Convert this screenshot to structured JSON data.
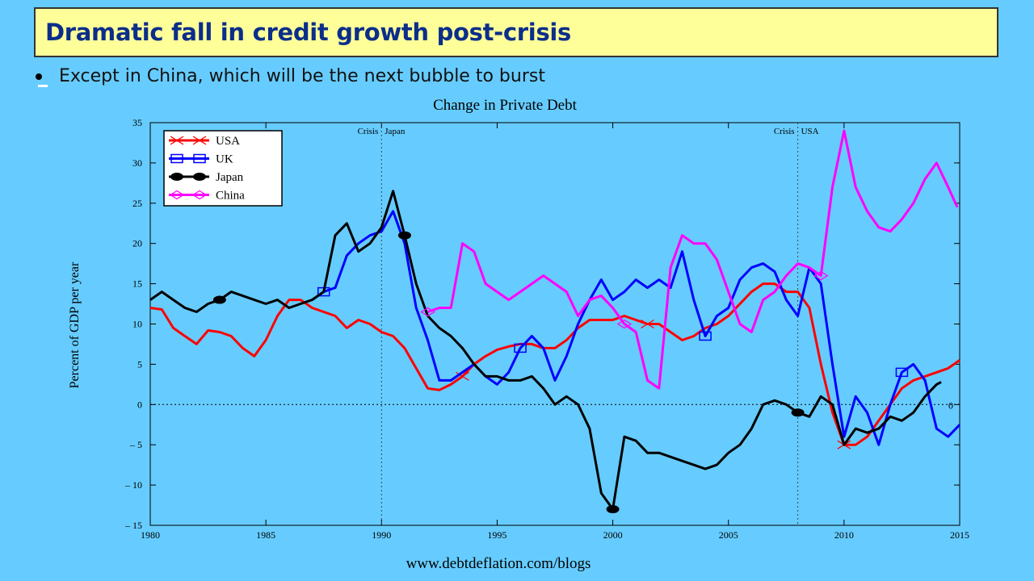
{
  "slide": {
    "title": "Dramatic fall in credit growth post-crisis",
    "bullet": "Except in China, which will be the next bubble to burst",
    "footer": "www.debtdeflation.com/blogs",
    "background_color": "#66ccff",
    "title_bg_color": "#ffff99",
    "title_text_color": "#0b2e8a"
  },
  "chart_data": {
    "type": "line",
    "title": "Change in Private Debt",
    "xlabel": "",
    "ylabel": "Percent of GDP per year",
    "xlim": [
      1980,
      2015
    ],
    "ylim": [
      -15,
      35
    ],
    "x_ticks": [
      "1980",
      "1985",
      "1990",
      "1995",
      "2000",
      "2005",
      "2010",
      "2015"
    ],
    "y_ticks": [
      "35",
      "30",
      "25",
      "20",
      "15",
      "10",
      "5",
      "0",
      "– 5",
      "– 10",
      "– 15"
    ],
    "grid": false,
    "legend_position": "top-left",
    "zero_line_label": "0",
    "annotations": [
      {
        "text": "Crisis",
        "x": 1990,
        "side": "left"
      },
      {
        "text": "Japan",
        "x": 1990,
        "side": "right"
      },
      {
        "text": "Crisis",
        "x": 2008,
        "side": "left"
      },
      {
        "text": "USA",
        "x": 2008,
        "side": "right"
      }
    ],
    "series": [
      {
        "name": "USA",
        "color": "#ff0000",
        "marker": "x",
        "points": [
          [
            1980,
            12
          ],
          [
            1980.5,
            11.8
          ],
          [
            1981,
            9.5
          ],
          [
            1981.5,
            8.5
          ],
          [
            1982,
            7.5
          ],
          [
            1982.5,
            9.2
          ],
          [
            1983,
            9
          ],
          [
            1983.5,
            8.5
          ],
          [
            1984,
            7
          ],
          [
            1984.5,
            6
          ],
          [
            1985,
            8
          ],
          [
            1985.5,
            11
          ],
          [
            1986,
            13
          ],
          [
            1986.5,
            13
          ],
          [
            1987,
            12
          ],
          [
            1987.5,
            11.5
          ],
          [
            1988,
            11
          ],
          [
            1988.5,
            9.5
          ],
          [
            1989,
            10.5
          ],
          [
            1989.5,
            10
          ],
          [
            1990,
            9
          ],
          [
            1990.5,
            8.5
          ],
          [
            1991,
            7
          ],
          [
            1991.5,
            4.5
          ],
          [
            1992,
            2
          ],
          [
            1992.5,
            1.8
          ],
          [
            1993,
            2.5
          ],
          [
            1993.5,
            3.5
          ],
          [
            1994,
            5
          ],
          [
            1994.5,
            6
          ],
          [
            1995,
            6.8
          ],
          [
            1995.5,
            7.2
          ],
          [
            1996,
            7.5
          ],
          [
            1996.5,
            7.5
          ],
          [
            1997,
            7
          ],
          [
            1997.5,
            7
          ],
          [
            1998,
            8
          ],
          [
            1998.5,
            9.5
          ],
          [
            1999,
            10.5
          ],
          [
            1999.5,
            10.5
          ],
          [
            2000,
            10.5
          ],
          [
            2000.5,
            11
          ],
          [
            2001,
            10.5
          ],
          [
            2001.5,
            10
          ],
          [
            2002,
            10
          ],
          [
            2002.5,
            9
          ],
          [
            2003,
            8
          ],
          [
            2003.5,
            8.5
          ],
          [
            2004,
            9.5
          ],
          [
            2004.5,
            10
          ],
          [
            2005,
            11
          ],
          [
            2005.5,
            12.5
          ],
          [
            2006,
            14
          ],
          [
            2006.5,
            15
          ],
          [
            2007,
            15
          ],
          [
            2007.5,
            14
          ],
          [
            2008,
            14
          ],
          [
            2008.5,
            12
          ],
          [
            2009,
            5
          ],
          [
            2009.5,
            -1
          ],
          [
            2010,
            -5
          ],
          [
            2010.5,
            -5
          ],
          [
            2011,
            -4
          ],
          [
            2011.5,
            -2
          ],
          [
            2012,
            0
          ],
          [
            2012.5,
            2
          ],
          [
            2013,
            3
          ],
          [
            2013.5,
            3.5
          ],
          [
            2014,
            4
          ],
          [
            2014.5,
            4.5
          ],
          [
            2015,
            5.5
          ]
        ]
      },
      {
        "name": "UK",
        "color": "#0000ff",
        "marker": "square",
        "points": [
          [
            1987,
            13
          ],
          [
            1987.5,
            14
          ],
          [
            1988,
            14.5
          ],
          [
            1988.5,
            18.5
          ],
          [
            1989,
            20
          ],
          [
            1989.5,
            21
          ],
          [
            1990,
            21.5
          ],
          [
            1990.5,
            24
          ],
          [
            1991,
            20
          ],
          [
            1991.5,
            12
          ],
          [
            1992,
            8
          ],
          [
            1992.5,
            3
          ],
          [
            1993,
            3
          ],
          [
            1993.5,
            4
          ],
          [
            1994,
            5
          ],
          [
            1994.5,
            3.5
          ],
          [
            1995,
            2.5
          ],
          [
            1995.5,
            4
          ],
          [
            1996,
            7
          ],
          [
            1996.5,
            8.5
          ],
          [
            1997,
            7
          ],
          [
            1997.5,
            3
          ],
          [
            1998,
            6
          ],
          [
            1998.5,
            10
          ],
          [
            1999,
            13
          ],
          [
            1999.5,
            15.5
          ],
          [
            2000,
            13
          ],
          [
            2000.5,
            14
          ],
          [
            2001,
            15.5
          ],
          [
            2001.5,
            14.5
          ],
          [
            2002,
            15.5
          ],
          [
            2002.5,
            14.5
          ],
          [
            2003,
            19
          ],
          [
            2003.5,
            13
          ],
          [
            2004,
            8.5
          ],
          [
            2004.5,
            11
          ],
          [
            2005,
            12
          ],
          [
            2005.5,
            15.5
          ],
          [
            2006,
            17
          ],
          [
            2006.5,
            17.5
          ],
          [
            2007,
            16.5
          ],
          [
            2007.5,
            13
          ],
          [
            2008,
            11
          ],
          [
            2008.5,
            17
          ],
          [
            2009,
            15
          ],
          [
            2009.5,
            5
          ],
          [
            2010,
            -4
          ],
          [
            2010.5,
            1
          ],
          [
            2011,
            -1
          ],
          [
            2011.5,
            -5
          ],
          [
            2012,
            0
          ],
          [
            2012.5,
            4
          ],
          [
            2013,
            5
          ],
          [
            2013.5,
            3
          ],
          [
            2014,
            -3
          ],
          [
            2014.5,
            -4
          ],
          [
            2015,
            -2.5
          ]
        ]
      },
      {
        "name": "Japan",
        "color": "#000000",
        "marker": "ellipse",
        "points": [
          [
            1980,
            13
          ],
          [
            1980.5,
            14
          ],
          [
            1981,
            13
          ],
          [
            1981.5,
            12
          ],
          [
            1982,
            11.5
          ],
          [
            1982.5,
            12.5
          ],
          [
            1983,
            13
          ],
          [
            1983.5,
            14
          ],
          [
            1984,
            13.5
          ],
          [
            1984.5,
            13
          ],
          [
            1985,
            12.5
          ],
          [
            1985.5,
            13
          ],
          [
            1986,
            12
          ],
          [
            1986.5,
            12.5
          ],
          [
            1987,
            13
          ],
          [
            1987.5,
            14
          ],
          [
            1988,
            21
          ],
          [
            1988.5,
            22.5
          ],
          [
            1989,
            19
          ],
          [
            1989.5,
            20
          ],
          [
            1990,
            22
          ],
          [
            1990.5,
            26.5
          ],
          [
            1991,
            21
          ],
          [
            1991.5,
            15
          ],
          [
            1992,
            11
          ],
          [
            1992.5,
            9.5
          ],
          [
            1993,
            8.5
          ],
          [
            1993.5,
            7
          ],
          [
            1994,
            5
          ],
          [
            1994.5,
            3.5
          ],
          [
            1995,
            3.5
          ],
          [
            1995.5,
            3
          ],
          [
            1996,
            3
          ],
          [
            1996.5,
            3.5
          ],
          [
            1997,
            2
          ],
          [
            1997.5,
            0
          ],
          [
            1998,
            1
          ],
          [
            1998.5,
            0
          ],
          [
            1999,
            -3
          ],
          [
            1999.5,
            -11
          ],
          [
            2000,
            -13
          ],
          [
            2000.5,
            -4
          ],
          [
            2001,
            -4.5
          ],
          [
            2001.5,
            -6
          ],
          [
            2002,
            -6
          ],
          [
            2002.5,
            -6.5
          ],
          [
            2003,
            -7
          ],
          [
            2003.5,
            -7.5
          ],
          [
            2004,
            -8
          ],
          [
            2004.5,
            -7.5
          ],
          [
            2005,
            -6
          ],
          [
            2005.5,
            -5
          ],
          [
            2006,
            -3
          ],
          [
            2006.5,
            0
          ],
          [
            2007,
            0.5
          ],
          [
            2007.5,
            0
          ],
          [
            2008,
            -1
          ],
          [
            2008.5,
            -1.5
          ],
          [
            2009,
            1
          ],
          [
            2009.5,
            0
          ],
          [
            2010,
            -5
          ],
          [
            2010.5,
            -3
          ],
          [
            2011,
            -3.5
          ],
          [
            2011.5,
            -3
          ],
          [
            2012,
            -1.5
          ],
          [
            2012.5,
            -2
          ],
          [
            2013,
            -1
          ],
          [
            2013.5,
            1
          ],
          [
            2014,
            2.5
          ],
          [
            2014.2,
            2.8
          ]
        ]
      },
      {
        "name": "China",
        "color": "#ff00ff",
        "marker": "diamond",
        "points": [
          [
            1992,
            11.5
          ],
          [
            1992.5,
            12
          ],
          [
            1993,
            12
          ],
          [
            1993.5,
            20
          ],
          [
            1994,
            19
          ],
          [
            1994.5,
            15
          ],
          [
            1995,
            14
          ],
          [
            1995.5,
            13
          ],
          [
            1996,
            14
          ],
          [
            1996.5,
            15
          ],
          [
            1997,
            16
          ],
          [
            1997.5,
            15
          ],
          [
            1998,
            14
          ],
          [
            1998.5,
            11
          ],
          [
            1999,
            13
          ],
          [
            1999.5,
            13.5
          ],
          [
            2000,
            12
          ],
          [
            2000.5,
            10
          ],
          [
            2001,
            9
          ],
          [
            2001.5,
            3
          ],
          [
            2002,
            2
          ],
          [
            2002.5,
            17
          ],
          [
            2003,
            21
          ],
          [
            2003.5,
            20
          ],
          [
            2004,
            20
          ],
          [
            2004.5,
            18
          ],
          [
            2005,
            14
          ],
          [
            2005.5,
            10
          ],
          [
            2006,
            9
          ],
          [
            2006.5,
            13
          ],
          [
            2007,
            14
          ],
          [
            2007.5,
            16
          ],
          [
            2008,
            17.5
          ],
          [
            2008.5,
            17
          ],
          [
            2009,
            16
          ],
          [
            2009.5,
            27
          ],
          [
            2010,
            34
          ],
          [
            2010.5,
            27
          ],
          [
            2011,
            24
          ],
          [
            2011.5,
            22
          ],
          [
            2012,
            21.5
          ],
          [
            2012.5,
            23
          ],
          [
            2013,
            25
          ],
          [
            2013.5,
            28
          ],
          [
            2014,
            30
          ],
          [
            2014.5,
            27
          ],
          [
            2014.9,
            24.5
          ]
        ]
      }
    ]
  }
}
